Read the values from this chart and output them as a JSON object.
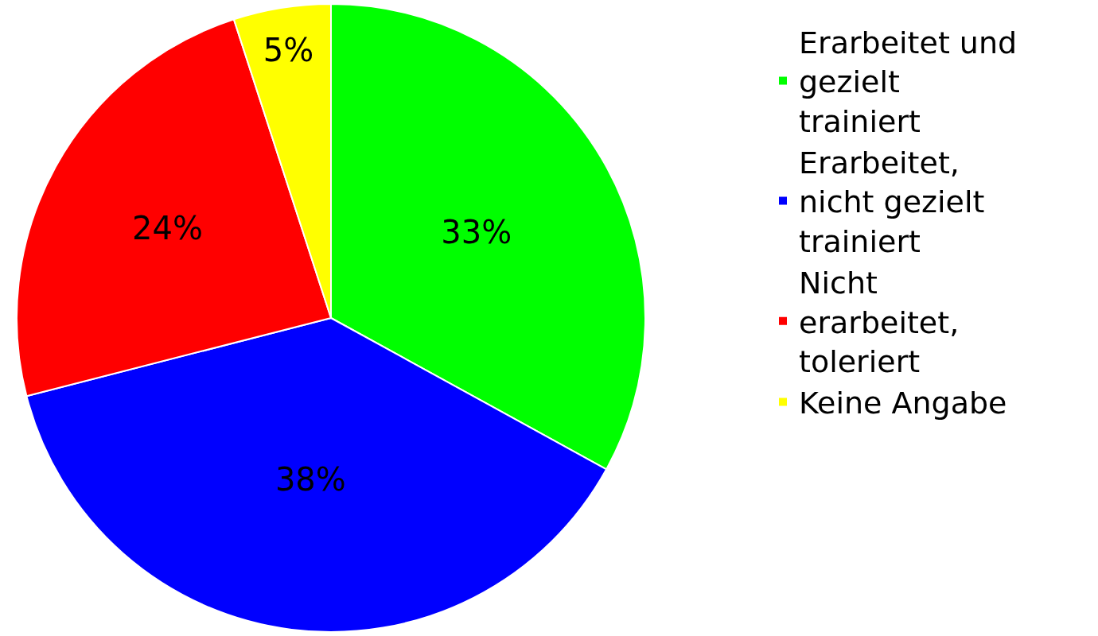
{
  "chart_data": {
    "type": "pie",
    "categories": [
      "Erarbeitet und gezielt trainiert",
      "Erarbeitet, nicht gezielt trainiert",
      "Nicht erarbeitet, toleriert",
      "Keine Angabe"
    ],
    "values": [
      33,
      38,
      24,
      5
    ],
    "value_labels": [
      "33%",
      "38%",
      "24%",
      "5%"
    ],
    "colors": [
      "#00ff00",
      "#0000ff",
      "#ff0000",
      "#ffff00"
    ],
    "legend": "right"
  }
}
